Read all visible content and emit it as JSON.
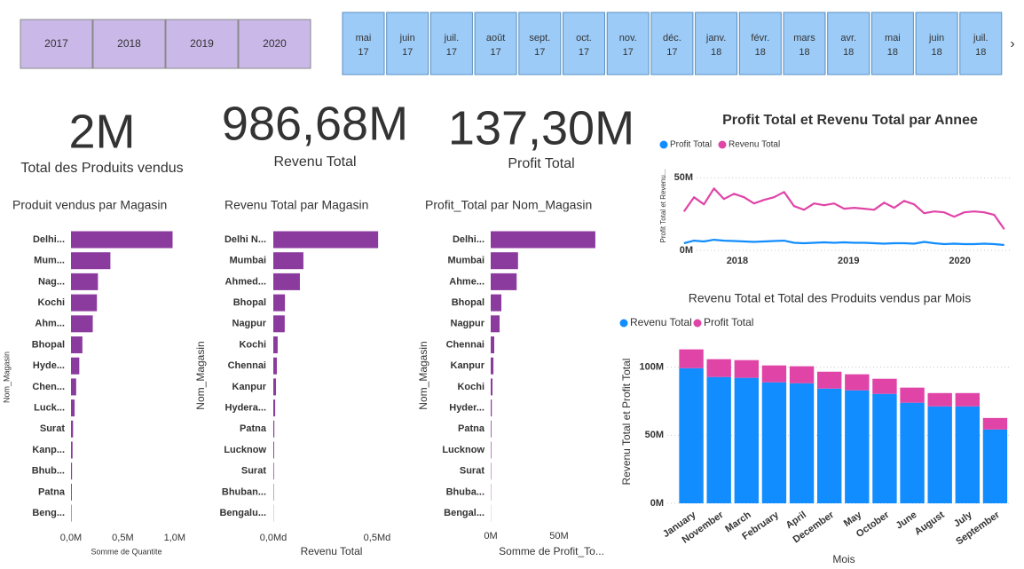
{
  "year_slicer": [
    "2017",
    "2018",
    "2019",
    "2020"
  ],
  "month_slicer": [
    {
      "month": "mai",
      "year": "17"
    },
    {
      "month": "juin",
      "year": "17"
    },
    {
      "month": "juil.",
      "year": "17"
    },
    {
      "month": "août",
      "year": "17"
    },
    {
      "month": "sept.",
      "year": "17"
    },
    {
      "month": "oct.",
      "year": "17"
    },
    {
      "month": "nov.",
      "year": "17"
    },
    {
      "month": "déc.",
      "year": "17"
    },
    {
      "month": "janv.",
      "year": "18"
    },
    {
      "month": "févr.",
      "year": "18"
    },
    {
      "month": "mars",
      "year": "18"
    },
    {
      "month": "avr.",
      "year": "18"
    },
    {
      "month": "mai",
      "year": "18"
    },
    {
      "month": "juin",
      "year": "18"
    },
    {
      "month": "juil.",
      "year": "18"
    }
  ],
  "cards": [
    {
      "value": "2M",
      "label": "Total des Produits vendus"
    },
    {
      "value": "986,68M",
      "label": "Revenu Total"
    },
    {
      "value": "137,30M",
      "label": "Profit Total"
    }
  ],
  "chart_data": [
    {
      "type": "bar",
      "orientation": "horizontal",
      "title": "Produit vendus par Magasin",
      "x_label": "Somme de Quantite",
      "y_label": "Nom_Magasin",
      "categories": [
        "Delhi...",
        "Mum...",
        "Nag...",
        "Kochi",
        "Ahm...",
        "Bhopal",
        "Hyde...",
        "Chen...",
        "Luck...",
        "Surat",
        "Kanp...",
        "Bhub...",
        "Patna",
        "Beng..."
      ],
      "values": [
        0.98,
        0.38,
        0.26,
        0.25,
        0.21,
        0.11,
        0.08,
        0.05,
        0.035,
        0.02,
        0.015,
        0.01,
        0.008,
        0.005
      ],
      "color": "#8b3a9e",
      "xlim": [
        0,
        1.07
      ],
      "xticks": [
        {
          "value": 0,
          "label": "0,0M"
        },
        {
          "value": 0.5,
          "label": "0,5M"
        },
        {
          "value": 1.0,
          "label": "1,0M"
        }
      ]
    },
    {
      "type": "bar",
      "orientation": "horizontal",
      "title": "Revenu Total par Magasin",
      "x_label": "Revenu Total",
      "y_label": "Nom_Magasin",
      "categories": [
        "Delhi N...",
        "Mumbai",
        "Ahmed...",
        "Bhopal",
        "Nagpur",
        "Kochi",
        "Chennai",
        "Kanpur",
        "Hydera...",
        "Patna",
        "Lucknow",
        "Surat",
        "Bhuban...",
        "Bengalu..."
      ],
      "values": [
        0.505,
        0.145,
        0.128,
        0.056,
        0.055,
        0.021,
        0.017,
        0.013,
        0.009,
        0.005,
        0.004,
        0.003,
        0.002,
        0.001
      ],
      "color": "#8b3a9e",
      "xlim": [
        0,
        0.56
      ],
      "xticks": [
        {
          "value": 0,
          "label": "0,0Md"
        },
        {
          "value": 0.5,
          "label": "0,5Md"
        }
      ]
    },
    {
      "type": "bar",
      "orientation": "horizontal",
      "title": "Profit_Total par Nom_Magasin",
      "x_label": "Somme de Profit_To...",
      "y_label": "Nom_Magasin",
      "categories": [
        "Delhi...",
        "Mumbai",
        "Ahme...",
        "Bhopal",
        "Nagpur",
        "Chennai",
        "Kanpur",
        "Kochi",
        "Hyder...",
        "Patna",
        "Lucknow",
        "Surat",
        "Bhuba...",
        "Bengal..."
      ],
      "values": [
        76.6,
        20,
        19,
        7.8,
        6.5,
        2.6,
        2,
        1.3,
        0.8,
        0.5,
        0.4,
        0.3,
        0.2,
        0.1
      ],
      "color": "#8b3a9e",
      "xlim": [
        0,
        89
      ],
      "xticks": [
        {
          "value": 0,
          "label": "0M"
        },
        {
          "value": 50,
          "label": "50M"
        }
      ]
    },
    {
      "type": "line",
      "title": "Profit Total et Revenu Total par Annee",
      "y_label": "Profit Total et Revenu...",
      "x": [
        2017.52,
        2017.61,
        2017.7,
        2017.79,
        2017.88,
        2017.97,
        2018.06,
        2018.15,
        2018.24,
        2018.33,
        2018.42,
        2018.51,
        2018.6,
        2018.69,
        2018.78,
        2018.87,
        2018.96,
        2019.05,
        2019.14,
        2019.23,
        2019.32,
        2019.41,
        2019.5,
        2019.59,
        2019.68,
        2019.77,
        2019.86,
        2019.95,
        2020.04,
        2020.13,
        2020.22,
        2020.31,
        2020.4
      ],
      "series": [
        {
          "name": "Profit Total",
          "color": "#118dff",
          "values": [
            4.9,
            6.7,
            6.1,
            7.3,
            6.7,
            6.4,
            6.1,
            5.8,
            6.1,
            6.4,
            6.7,
            5.2,
            4.9,
            5.2,
            5.5,
            5.2,
            5.5,
            5.2,
            5.2,
            4.9,
            4.6,
            4.9,
            4.9,
            4.6,
            5.8,
            4.9,
            4.3,
            4.6,
            4.3,
            4.3,
            4.6,
            4.3,
            3.7
          ]
        },
        {
          "name": "Revenu Total",
          "color": "#e044a7",
          "values": [
            26.8,
            36.6,
            31.7,
            42.7,
            35.4,
            39,
            36.6,
            32.3,
            34.8,
            36.6,
            40.2,
            30.5,
            28,
            32.3,
            31.1,
            32.3,
            28.7,
            29.3,
            28.7,
            28,
            32.9,
            29.3,
            34.1,
            31.7,
            25.6,
            26.8,
            26.2,
            23.2,
            26.2,
            26.8,
            26.2,
            24.4,
            14.6
          ]
        }
      ],
      "xlim": [
        2017.45,
        2020.45
      ],
      "xticks": [
        2018,
        2019,
        2020
      ],
      "ylim": [
        0,
        60
      ],
      "yticks": [
        {
          "value": 0,
          "label": "0M"
        },
        {
          "value": 50,
          "label": "50M"
        }
      ],
      "grid": true
    },
    {
      "type": "bar",
      "orientation": "vertical",
      "stacked": true,
      "title": "Revenu Total et Total des Produits vendus par Mois",
      "x_label": "Mois",
      "y_label": "Revenu Total et Profit Total",
      "categories": [
        "January",
        "November",
        "March",
        "February",
        "April",
        "December",
        "May",
        "October",
        "June",
        "August",
        "July",
        "September"
      ],
      "series": [
        {
          "name": "Revenu Total",
          "color": "#118dff",
          "values": [
            99.3,
            92.8,
            92.2,
            88.9,
            88.2,
            84.3,
            83,
            80.4,
            73.9,
            71.2,
            71.2,
            54.2
          ]
        },
        {
          "name": "Profit Total",
          "color": "#e044a7",
          "values": [
            13.8,
            13.1,
            13,
            12.4,
            12.5,
            12.4,
            11.8,
            11.1,
            11.1,
            9.8,
            9.8,
            8.5
          ]
        }
      ],
      "ylim": [
        0,
        120
      ],
      "yticks": [
        {
          "value": 0,
          "label": "0M"
        },
        {
          "value": 50,
          "label": "50M"
        },
        {
          "value": 100,
          "label": "100M"
        }
      ],
      "grid": true
    }
  ]
}
